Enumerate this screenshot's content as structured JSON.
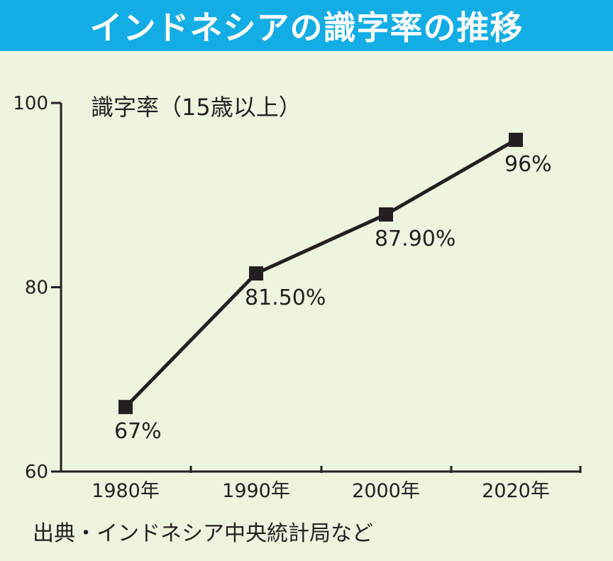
{
  "title": "インドネシアの識字率の推移",
  "source": "出典・インドネシア中央統計局など",
  "colors": {
    "title_bg": "#13ade6",
    "title_text": "#ffffff",
    "background": "#eef5de",
    "line": "#231f20"
  },
  "chart_data": {
    "type": "line",
    "title": "インドネシアの識字率の推移",
    "ylabel": "識字率（15歳以上）",
    "xlabel": "",
    "categories": [
      "1980年",
      "1990年",
      "2000年",
      "2020年"
    ],
    "yticks": [
      "60",
      "80",
      "100"
    ],
    "ylim": [
      60,
      100
    ],
    "grid": false,
    "series": [
      {
        "values": [
          67,
          81.5,
          87.9,
          96
        ],
        "data_labels": [
          "67%",
          "81.50%",
          "87.90%",
          "96%"
        ],
        "marker": "square"
      }
    ]
  }
}
